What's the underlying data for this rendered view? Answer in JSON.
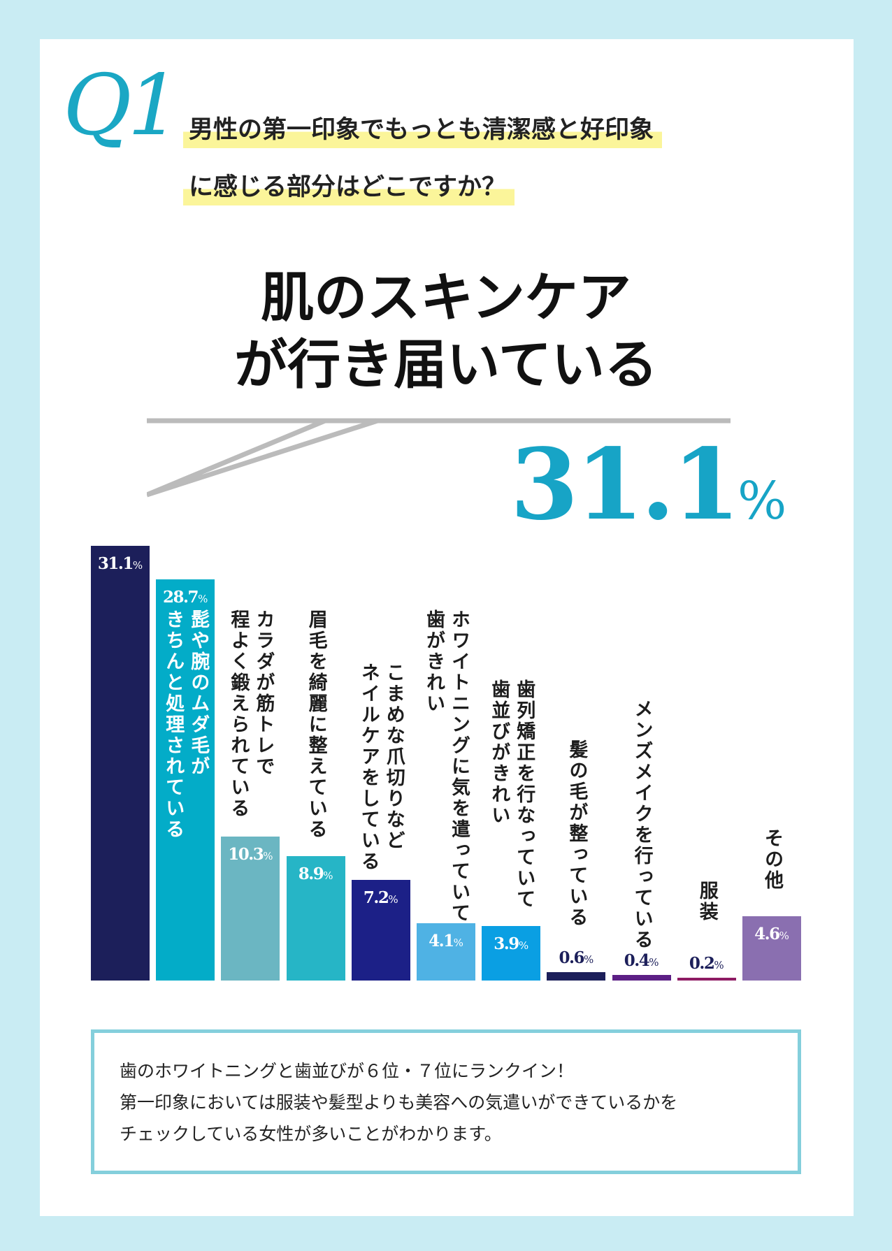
{
  "question": {
    "mark": "Q1",
    "lines": [
      "男性の第一印象でもっとも清潔感と好印象",
      "に感じる部分はどこですか？"
    ]
  },
  "headline": {
    "lines": [
      "肌のスキンケア",
      "が行き届いている"
    ]
  },
  "highlight": {
    "value": "31.1",
    "unit": "%"
  },
  "colors": {
    "accent": "#17a4c6",
    "highlight_yellow": "#fbf59a",
    "frame": "#c9ecf3",
    "note_border": "#84cfdc"
  },
  "chart_data": {
    "type": "bar",
    "ylim": [
      0,
      31.1
    ],
    "categories": [
      [
        "肌のスキンケアが行き届いている"
      ],
      [
        "髭や腕のムダ毛が",
        "きちんと処理されている"
      ],
      [
        "カラダが筋トレで",
        "程よく鍛えられている"
      ],
      [
        "眉毛を綺麗に整えている"
      ],
      [
        "こまめな爪切りなど",
        "ネイルケアをしている"
      ],
      [
        "ホワイトニングに気を遣っていて",
        "歯がきれい"
      ],
      [
        "歯列矯正を行なっていて",
        "歯並びがきれい"
      ],
      [
        "髪の毛が整っている"
      ],
      [
        "メンズメイクを行っている"
      ],
      [
        "服装"
      ],
      [
        "その他"
      ]
    ],
    "values": [
      31.1,
      28.7,
      10.3,
      8.9,
      7.2,
      4.1,
      3.9,
      0.6,
      0.4,
      0.2,
      4.6
    ],
    "value_labels": [
      "31.1",
      "28.7",
      "10.3",
      "8.9",
      "7.2",
      "4.1",
      "3.9",
      "0.6",
      "0.4",
      "0.2",
      "4.6"
    ],
    "unit": "%",
    "bar_colors": [
      "#1c1f5a",
      "#03acc8",
      "#6bb6c2",
      "#26b5c6",
      "#1c2087",
      "#4fb2e4",
      "#0a9fe3",
      "#1c1f5a",
      "#5c1f85",
      "#8e1b63",
      "#8a6fb0"
    ],
    "value_label_colors": [
      "#ffffff",
      "#ffffff",
      "#ffffff",
      "#ffffff",
      "#ffffff",
      "#ffffff",
      "#ffffff",
      "#1c1f5a",
      "#1c1f5a",
      "#1c1f5a",
      "#ffffff"
    ],
    "category_label_colors": [
      "none",
      "light",
      "dark",
      "dark",
      "dark",
      "dark",
      "dark",
      "dark",
      "dark",
      "dark",
      "dark"
    ]
  },
  "note": {
    "lines": [
      "歯のホワイトニングと歯並びが６位・７位にランクイン！",
      "第一印象においては服装や髪型よりも美容への気遣いができているかを",
      "チェックしている女性が多いことがわかります。"
    ]
  }
}
